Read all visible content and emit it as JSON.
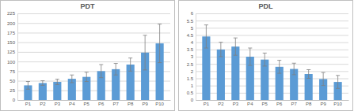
{
  "chart_data": [
    {
      "type": "bar",
      "title": "PDT",
      "categories": [
        "P1",
        "P2",
        "P3",
        "P4",
        "P5",
        "P6",
        "P7",
        "P8",
        "P9",
        "P10"
      ],
      "values": [
        38,
        44,
        47,
        55,
        60,
        75,
        80,
        92,
        123,
        147
      ],
      "errors": [
        10,
        6,
        7,
        10,
        12,
        17,
        15,
        17,
        45,
        50
      ],
      "color": "#5b9bd5",
      "ylim": [
        0,
        225
      ],
      "yticks": [
        0,
        25,
        50,
        75,
        100,
        125,
        150,
        175,
        200,
        225
      ],
      "grid": true
    },
    {
      "type": "bar",
      "title": "PDL",
      "categories": [
        "P1",
        "P2",
        "P3",
        "P4",
        "P5",
        "P6",
        "P7",
        "P8",
        "P9",
        "P10"
      ],
      "values": [
        4.4,
        3.5,
        3.7,
        3.0,
        2.8,
        2.3,
        2.15,
        1.8,
        1.45,
        1.25
      ],
      "errors": [
        0.8,
        0.5,
        0.6,
        0.6,
        0.45,
        0.45,
        0.4,
        0.3,
        0.45,
        0.45
      ],
      "color": "#5b9bd5",
      "ylim": [
        0,
        6
      ],
      "yticks": [
        0,
        0.5,
        1,
        1.5,
        2,
        2.5,
        3,
        3.5,
        4,
        4.5,
        5,
        5.5,
        6
      ],
      "grid": true
    }
  ]
}
